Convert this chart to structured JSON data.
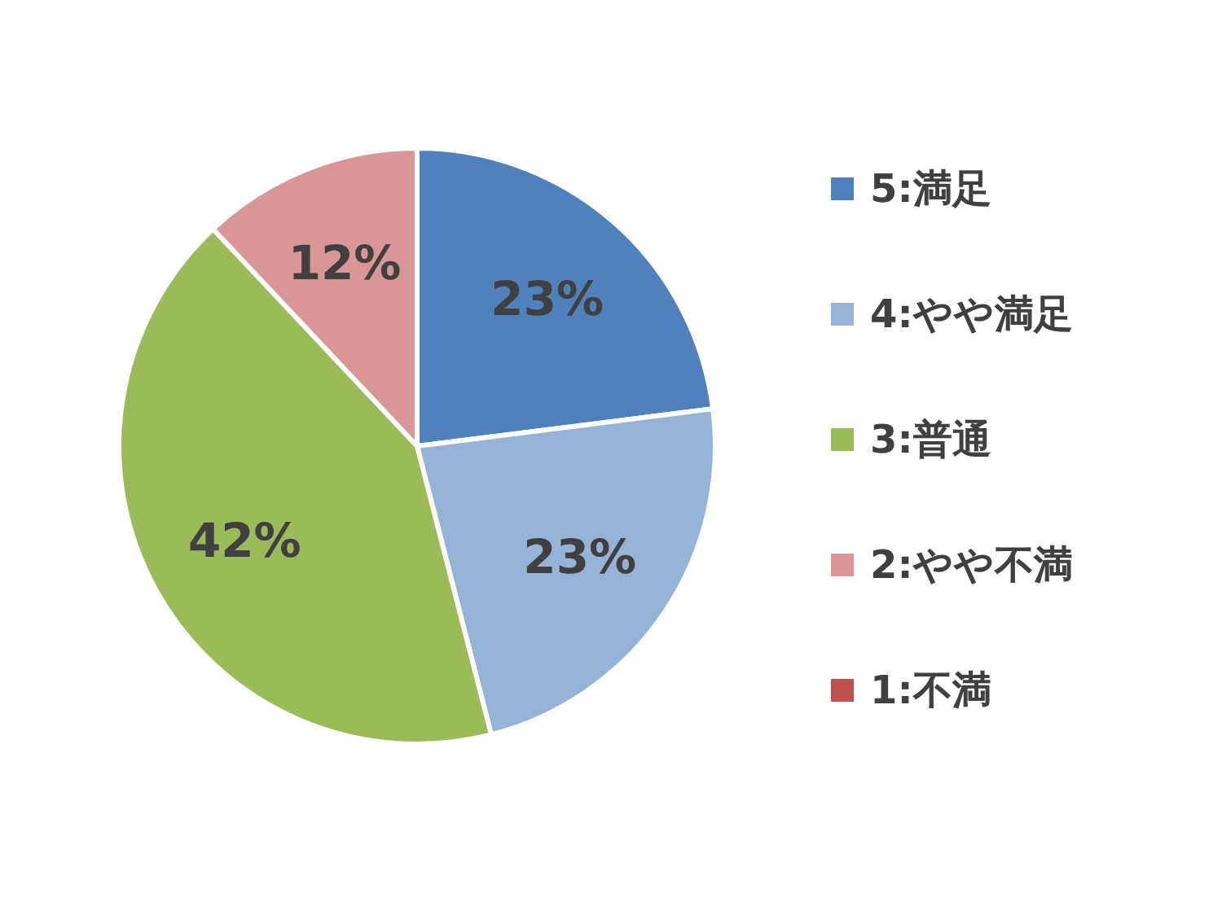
{
  "chart_data": {
    "type": "pie",
    "categories": [
      "5:満足",
      "4:やや満足",
      "3:普通",
      "2:やや不満",
      "1:不満"
    ],
    "values": [
      23,
      23,
      42,
      12,
      0
    ],
    "colors": [
      "#4f81bd",
      "#95b3d7",
      "#9bbb59",
      "#d99694",
      "#c0504d"
    ],
    "value_labels": [
      "23%",
      "23%",
      "42%",
      "12%",
      null
    ],
    "legend": "right"
  }
}
